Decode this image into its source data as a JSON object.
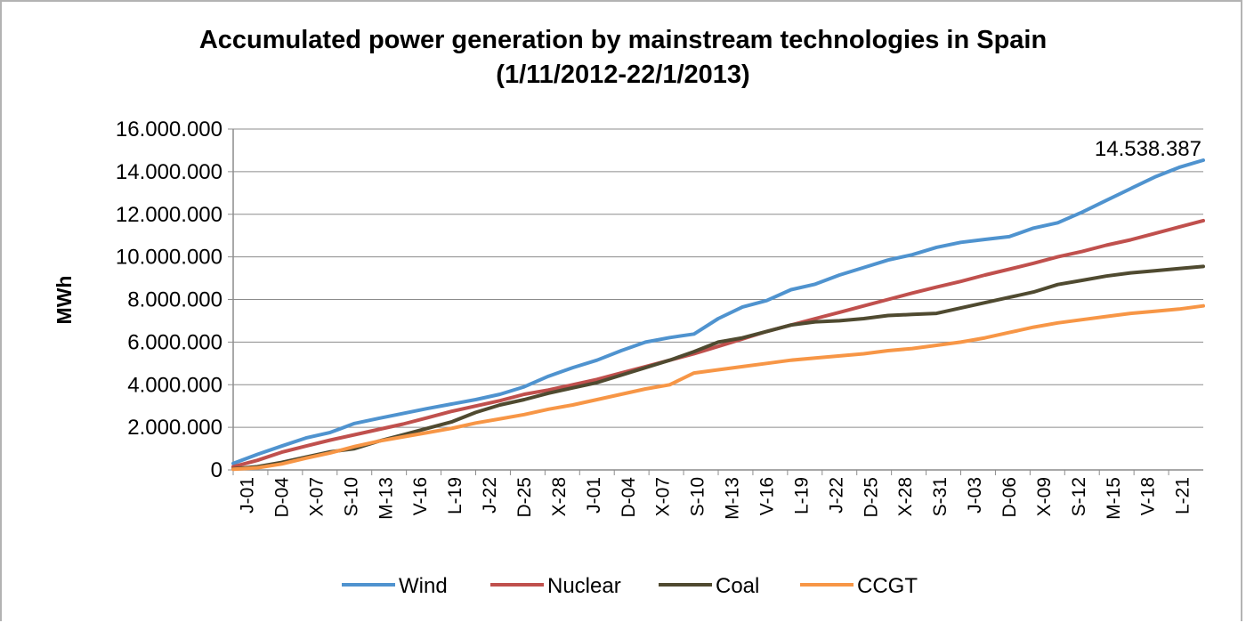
{
  "chart_data": {
    "type": "line",
    "title_line1": "Accumulated power generation by mainstream technologies in Spain",
    "title_line2": "(1/11/2012-22/1/2013)",
    "xlabel": "",
    "ylabel": "MWh",
    "ylim": [
      0,
      16000000
    ],
    "y_ticks": [
      "0",
      "2.000.000",
      "4.000.000",
      "6.000.000",
      "8.000.000",
      "10.000.000",
      "12.000.000",
      "14.000.000",
      "16.000.000"
    ],
    "x_tick_labels": [
      "J-01",
      "D-04",
      "X-07",
      "S-10",
      "M-13",
      "V-16",
      "L-19",
      "J-22",
      "D-25",
      "X-28",
      "J-01",
      "D-04",
      "X-07",
      "S-10",
      "M-13",
      "V-16",
      "L-19",
      "J-22",
      "D-25",
      "X-28",
      "S-31",
      "J-03",
      "D-06",
      "X-09",
      "S-12",
      "M-15",
      "V-18",
      "L-21"
    ],
    "annotation": "14.538.387",
    "grid": "horizontal",
    "legend_position": "bottom",
    "series": [
      {
        "name": "Wind",
        "color": "#4f93cf",
        "values": [
          300000,
          730000,
          1120000,
          1500000,
          1760000,
          2180000,
          2420000,
          2650000,
          2880000,
          3090000,
          3300000,
          3550000,
          3900000,
          4400000,
          4800000,
          5150000,
          5600000,
          6000000,
          6210000,
          6380000,
          7100000,
          7650000,
          7950000,
          8460000,
          8720000,
          9150000,
          9500000,
          9850000,
          10100000,
          10450000,
          10680000,
          10820000,
          10950000,
          11350000,
          11600000,
          12100000,
          12650000,
          13200000,
          13750000,
          14200000,
          14538387
        ]
      },
      {
        "name": "Nuclear",
        "color": "#c0504d",
        "values": [
          150000,
          450000,
          830000,
          1120000,
          1400000,
          1650000,
          1900000,
          2150000,
          2450000,
          2750000,
          3000000,
          3250000,
          3550000,
          3750000,
          4000000,
          4250000,
          4550000,
          4850000,
          5150000,
          5450000,
          5800000,
          6150000,
          6500000,
          6800000,
          7100000,
          7400000,
          7700000,
          8000000,
          8300000,
          8580000,
          8850000,
          9150000,
          9420000,
          9700000,
          10000000,
          10250000,
          10550000,
          10800000,
          11100000,
          11400000,
          11700000
        ]
      },
      {
        "name": "Coal",
        "color": "#4f4a30",
        "values": [
          50000,
          150000,
          350000,
          600000,
          850000,
          1000000,
          1350000,
          1650000,
          1950000,
          2250000,
          2700000,
          3050000,
          3300000,
          3600000,
          3850000,
          4100000,
          4450000,
          4800000,
          5150000,
          5550000,
          6000000,
          6200000,
          6500000,
          6800000,
          6950000,
          7000000,
          7100000,
          7250000,
          7300000,
          7350000,
          7600000,
          7850000,
          8100000,
          8350000,
          8700000,
          8900000,
          9100000,
          9250000,
          9350000,
          9450000,
          9550000
        ]
      },
      {
        "name": "CCGT",
        "color": "#f79646",
        "values": [
          30000,
          100000,
          280000,
          550000,
          800000,
          1100000,
          1350000,
          1550000,
          1750000,
          1950000,
          2200000,
          2400000,
          2600000,
          2850000,
          3050000,
          3300000,
          3550000,
          3800000,
          4000000,
          4550000,
          4700000,
          4850000,
          5000000,
          5150000,
          5250000,
          5350000,
          5450000,
          5600000,
          5700000,
          5850000,
          6000000,
          6200000,
          6450000,
          6700000,
          6900000,
          7050000,
          7200000,
          7350000,
          7450000,
          7550000,
          7700000
        ]
      }
    ]
  }
}
